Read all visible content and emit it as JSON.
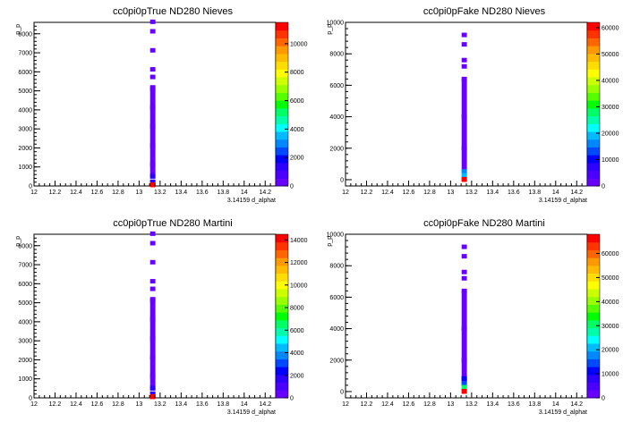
{
  "chart_data": [
    {
      "type": "heatmap",
      "title": "cc0pi0pTrue ND280 Nieves",
      "xlabel": "3.14159 d_alphat",
      "ylabel": "p_p",
      "xlim": [
        12,
        14.3
      ],
      "ylim": [
        0,
        8600
      ],
      "xticks": [
        "12",
        "12.2",
        "12.4",
        "12.6",
        "12.8",
        "13",
        "13.2",
        "13.4",
        "13.6",
        "13.8",
        "14",
        "14.2"
      ],
      "yticks": [
        "0",
        "1000",
        "2000",
        "3000",
        "4000",
        "5000",
        "6000",
        "7000",
        "8000"
      ],
      "zlim": [
        0,
        11500
      ],
      "zticks": [
        "0",
        "2000",
        "4000",
        "6000",
        "8000",
        "10000"
      ],
      "cells": [
        {
          "x": 13.13,
          "y": 8630,
          "z": 300
        },
        {
          "x": 13.13,
          "y": 8130,
          "z": 300
        },
        {
          "x": 13.13,
          "y": 7130,
          "z": 300
        },
        {
          "x": 13.13,
          "y": 6130,
          "z": 300
        },
        {
          "x": 13.13,
          "y": 5730,
          "z": 300
        },
        {
          "x": 13.13,
          "y": 5130,
          "z": 300
        },
        {
          "x": 13.13,
          "y": 4130,
          "z": 300
        },
        {
          "x": 13.13,
          "y": 3130,
          "z": 300
        },
        {
          "x": 13.13,
          "y": 2130,
          "z": 300
        },
        {
          "x": 13.13,
          "y": 1130,
          "z": 300
        },
        {
          "x": 13.13,
          "y": 500,
          "z": 1500
        },
        {
          "x": 13.13,
          "y": 200,
          "z": 1200
        },
        {
          "x": 13.13,
          "y": 50,
          "z": 11500
        }
      ]
    },
    {
      "type": "heatmap",
      "title": "cc0pi0pFake ND280 Nieves",
      "xlabel": "3.14159 d_alphat",
      "ylabel": "p_p",
      "xlim": [
        12,
        14.3
      ],
      "ylim": [
        -400,
        10000
      ],
      "xticks": [
        "12",
        "12.2",
        "12.4",
        "12.6",
        "12.8",
        "13",
        "13.2",
        "13.4",
        "13.6",
        "13.8",
        "14",
        "14.2"
      ],
      "yticks": [
        "0",
        "2000",
        "4000",
        "6000",
        "8000",
        "10000"
      ],
      "zlim": [
        0,
        62000
      ],
      "zticks": [
        "0",
        "10000",
        "20000",
        "30000",
        "40000",
        "50000",
        "60000"
      ],
      "cells": [
        {
          "x": 13.13,
          "y": 9200,
          "z": 2000
        },
        {
          "x": 13.13,
          "y": 8600,
          "z": 2000
        },
        {
          "x": 13.13,
          "y": 7600,
          "z": 2000
        },
        {
          "x": 13.13,
          "y": 7200,
          "z": 2000
        },
        {
          "x": 13.13,
          "y": 6400,
          "z": 2000
        },
        {
          "x": 13.13,
          "y": 4000,
          "z": 2000
        },
        {
          "x": 13.13,
          "y": 2000,
          "z": 2000
        },
        {
          "x": 13.13,
          "y": 500,
          "z": 15000
        },
        {
          "x": 13.13,
          "y": 250,
          "z": 20000
        },
        {
          "x": 13.13,
          "y": 0,
          "z": 60000
        }
      ]
    },
    {
      "type": "heatmap",
      "title": "cc0pi0pTrue ND280 Martini",
      "xlabel": "3.14159 d_alphat",
      "ylabel": "p_p",
      "xlim": [
        12,
        14.3
      ],
      "ylim": [
        0,
        8600
      ],
      "xticks": [
        "12",
        "12.2",
        "12.4",
        "12.6",
        "12.8",
        "13",
        "13.2",
        "13.4",
        "13.6",
        "13.8",
        "14",
        "14.2"
      ],
      "yticks": [
        "0",
        "1000",
        "2000",
        "3000",
        "4000",
        "5000",
        "6000",
        "7000",
        "8000"
      ],
      "zlim": [
        0,
        14500
      ],
      "zticks": [
        "0",
        "2000",
        "4000",
        "6000",
        "8000",
        "10000",
        "12000",
        "14000"
      ],
      "cells": [
        {
          "x": 13.13,
          "y": 8630,
          "z": 300
        },
        {
          "x": 13.13,
          "y": 8130,
          "z": 300
        },
        {
          "x": 13.13,
          "y": 7130,
          "z": 300
        },
        {
          "x": 13.13,
          "y": 6130,
          "z": 300
        },
        {
          "x": 13.13,
          "y": 5730,
          "z": 300
        },
        {
          "x": 13.13,
          "y": 5130,
          "z": 300
        },
        {
          "x": 13.13,
          "y": 4130,
          "z": 300
        },
        {
          "x": 13.13,
          "y": 3130,
          "z": 300
        },
        {
          "x": 13.13,
          "y": 2130,
          "z": 300
        },
        {
          "x": 13.13,
          "y": 1130,
          "z": 300
        },
        {
          "x": 13.13,
          "y": 500,
          "z": 1800
        },
        {
          "x": 13.13,
          "y": 200,
          "z": 1500
        },
        {
          "x": 13.13,
          "y": 50,
          "z": 14000
        }
      ]
    },
    {
      "type": "heatmap",
      "title": "cc0pi0pFake ND280 Martini",
      "xlabel": "3.14159 d_alphat",
      "ylabel": "p_p",
      "xlim": [
        12,
        14.3
      ],
      "ylim": [
        -400,
        10000
      ],
      "xticks": [
        "12",
        "12.2",
        "12.4",
        "12.6",
        "12.8",
        "13",
        "13.2",
        "13.4",
        "13.6",
        "13.8",
        "14",
        "14.2"
      ],
      "yticks": [
        "0",
        "2000",
        "4000",
        "6000",
        "8000",
        "10000"
      ],
      "zlim": [
        0,
        68000
      ],
      "zticks": [
        "0",
        "10000",
        "20000",
        "30000",
        "40000",
        "50000",
        "60000"
      ],
      "cells": [
        {
          "x": 13.13,
          "y": 9200,
          "z": 2000
        },
        {
          "x": 13.13,
          "y": 8600,
          "z": 2000
        },
        {
          "x": 13.13,
          "y": 7600,
          "z": 2000
        },
        {
          "x": 13.13,
          "y": 7200,
          "z": 2000
        },
        {
          "x": 13.13,
          "y": 6400,
          "z": 2000
        },
        {
          "x": 13.13,
          "y": 4000,
          "z": 2000
        },
        {
          "x": 13.13,
          "y": 2000,
          "z": 2000
        },
        {
          "x": 13.13,
          "y": 800,
          "z": 10000
        },
        {
          "x": 13.13,
          "y": 500,
          "z": 15000
        },
        {
          "x": 13.13,
          "y": 250,
          "z": 30000
        },
        {
          "x": 13.13,
          "y": 0,
          "z": 66000
        }
      ]
    }
  ],
  "palette": [
    "#6600ff",
    "#4b00ff",
    "#2d00ff",
    "#0000ff",
    "#0049ff",
    "#0088ff",
    "#00bbff",
    "#00ffff",
    "#00ffaa",
    "#00ff66",
    "#00ff00",
    "#55ff00",
    "#99ff00",
    "#ccff00",
    "#ffff00",
    "#ffdd00",
    "#ffbb00",
    "#ff9900",
    "#ff6600",
    "#ff3300",
    "#ff0000"
  ]
}
